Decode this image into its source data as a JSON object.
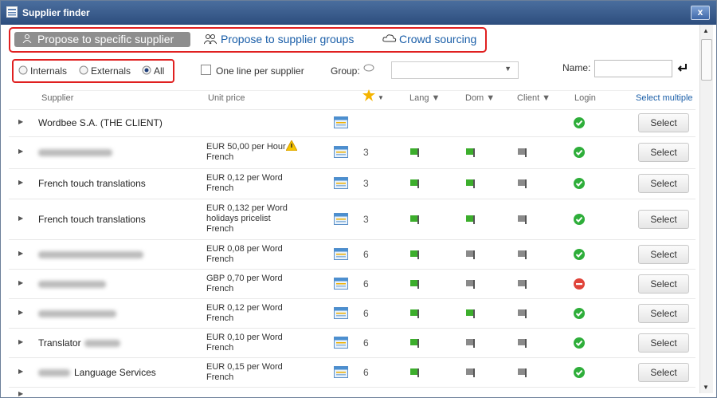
{
  "window": {
    "title": "Supplier finder",
    "close": "x"
  },
  "tabs": [
    {
      "label": "Propose to specific supplier",
      "active": true
    },
    {
      "label": "Propose to supplier groups",
      "active": false
    },
    {
      "label": "Crowd sourcing",
      "active": false
    }
  ],
  "filters": {
    "scope_options": [
      "Internals",
      "Externals",
      "All"
    ],
    "scope_selected": 2,
    "one_line_label": "One line per supplier",
    "one_line_checked": false,
    "group_label": "Group:",
    "name_label": "Name:"
  },
  "table": {
    "headers": {
      "supplier": "Supplier",
      "unit_price": "Unit price",
      "lang": "Lang ▼",
      "dom": "Dom ▼",
      "client": "Client ▼",
      "login": "Login",
      "select_multiple": "Select multiple"
    },
    "select_label": "Select",
    "rows": [
      {
        "name": "Wordbee S.A. (THE CLIENT)",
        "login": true
      },
      {
        "redacted": true,
        "price": [
          "EUR 50,00 per Hour",
          "French"
        ],
        "warning": true,
        "rating": "3",
        "flags": [
          "#3cae2c",
          "#3cae2c",
          "#8a8a8a"
        ],
        "login": true
      },
      {
        "name": "French touch translations",
        "price": [
          "EUR 0,12 per Word",
          "French"
        ],
        "rating": "3",
        "flags": [
          "#3cae2c",
          "#3cae2c",
          "#8a8a8a"
        ],
        "login": true
      },
      {
        "name": "French touch translations",
        "price": [
          "EUR 0,132 per Word",
          "holidays pricelist",
          "French"
        ],
        "rating": "3",
        "flags": [
          "#3cae2c",
          "#3cae2c",
          "#8a8a8a"
        ],
        "login": true
      },
      {
        "redacted": true,
        "price": [
          "EUR 0,08 per Word",
          "French"
        ],
        "rating": "6",
        "flags": [
          "#3cae2c",
          "#8a8a8a",
          "#8a8a8a"
        ],
        "login": true
      },
      {
        "redacted": true,
        "price": [
          "GBP 0,70 per Word",
          "French"
        ],
        "rating": "6",
        "flags": [
          "#3cae2c",
          "#8a8a8a",
          "#8a8a8a"
        ],
        "login": false
      },
      {
        "redacted": true,
        "price": [
          "EUR 0,12 per Word",
          "French"
        ],
        "rating": "6",
        "flags": [
          "#3cae2c",
          "#3cae2c",
          "#8a8a8a"
        ],
        "login": true
      },
      {
        "name": "Translator",
        "redacted_after": true,
        "price": [
          "EUR 0,10 per Word",
          "French"
        ],
        "rating": "6",
        "flags": [
          "#3cae2c",
          "#8a8a8a",
          "#8a8a8a"
        ],
        "login": true
      },
      {
        "name": "Language Services",
        "redacted_before": true,
        "price": [
          "EUR 0,15 per Word",
          "French"
        ],
        "rating": "6",
        "flags": [
          "#3cae2c",
          "#8a8a8a",
          "#8a8a8a"
        ],
        "login": true
      }
    ]
  }
}
